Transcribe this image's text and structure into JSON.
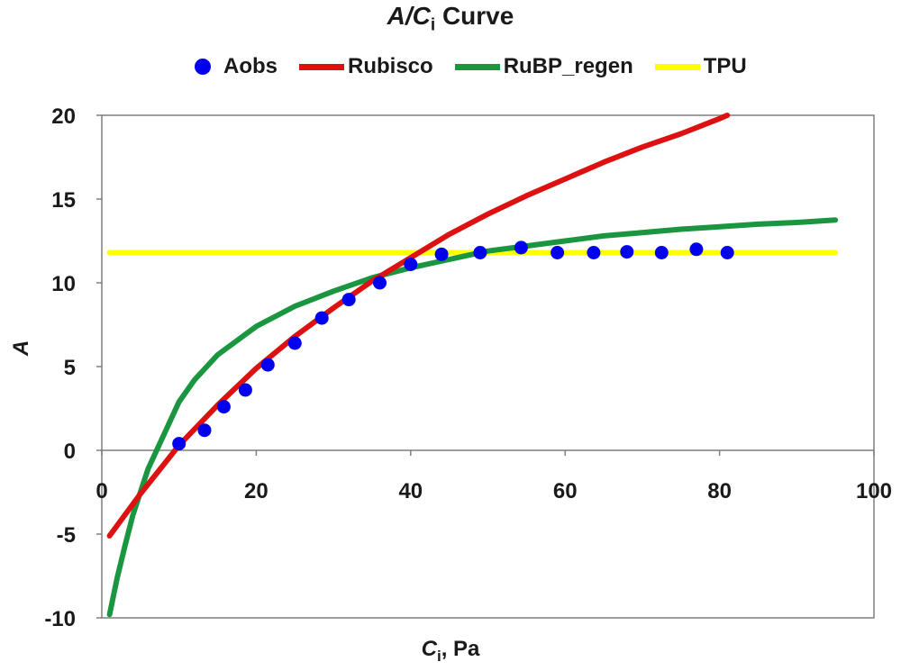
{
  "chart_data": {
    "type": "scatter",
    "title_main": "A/C",
    "title_sub": "i",
    "title_rest": " Curve",
    "xlabel_main": "C",
    "xlabel_sub": "i",
    "xlabel_rest": ", Pa",
    "ylabel": "A",
    "xlim": [
      0,
      100
    ],
    "ylim": [
      -10,
      20
    ],
    "xticks": [
      0,
      20,
      40,
      60,
      80,
      100
    ],
    "yticks": [
      -10,
      -5,
      0,
      5,
      10,
      15,
      20
    ],
    "grid": false,
    "legend_position": "top",
    "series": [
      {
        "name": "Aobs",
        "kind": "points",
        "color": "#0000ee",
        "x": [
          10,
          13.3,
          15.8,
          18.6,
          21.5,
          25,
          28.5,
          32,
          36,
          40,
          44,
          49,
          54.3,
          59,
          63.7,
          68,
          72.5,
          77,
          81
        ],
        "y": [
          0.4,
          1.2,
          2.6,
          3.6,
          5.1,
          6.4,
          7.9,
          9.0,
          10.0,
          11.1,
          11.7,
          11.8,
          12.1,
          11.8,
          11.8,
          11.85,
          11.8,
          12.0,
          11.8
        ]
      },
      {
        "name": "Rubisco",
        "kind": "line",
        "color": "#dd1111",
        "x": [
          1,
          5,
          10,
          15,
          20,
          25,
          30,
          35,
          40,
          45,
          50,
          55,
          60,
          65,
          70,
          75,
          80,
          81
        ],
        "y": [
          -5.1,
          -2.6,
          0.3,
          2.7,
          4.9,
          6.8,
          8.5,
          10.1,
          11.5,
          12.9,
          14.1,
          15.2,
          16.2,
          17.2,
          18.1,
          18.9,
          19.8,
          20.0
        ]
      },
      {
        "name": "RuBP_regen",
        "kind": "line",
        "color": "#1a9641",
        "x": [
          1,
          2,
          3,
          4,
          5,
          6,
          8,
          10,
          12,
          15,
          20,
          25,
          30,
          35,
          40,
          45,
          50,
          55,
          60,
          65,
          70,
          75,
          80,
          85,
          90,
          95
        ],
        "y": [
          -9.8,
          -7.6,
          -5.7,
          -3.9,
          -2.5,
          -1.1,
          0.9,
          2.9,
          4.2,
          5.7,
          7.4,
          8.6,
          9.5,
          10.3,
          10.9,
          11.4,
          11.9,
          12.2,
          12.5,
          12.8,
          13.0,
          13.2,
          13.35,
          13.5,
          13.6,
          13.75
        ]
      },
      {
        "name": "TPU",
        "kind": "line",
        "color": "#ffff00",
        "x": [
          1,
          95
        ],
        "y": [
          11.8,
          11.8
        ]
      }
    ]
  }
}
